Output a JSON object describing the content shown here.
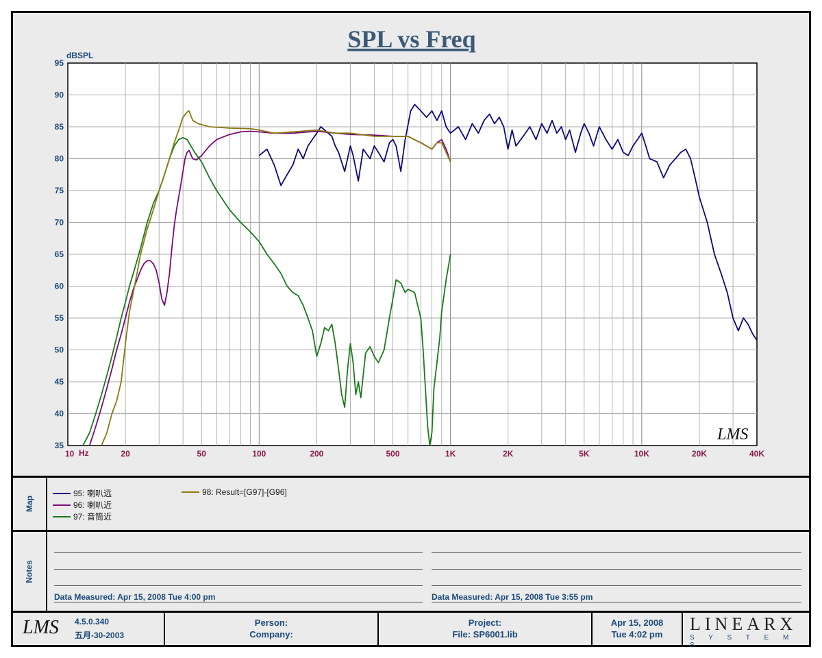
{
  "chart_data": {
    "type": "line",
    "title": "SPL vs Freq",
    "ylabel": "dBSPL",
    "xlabel_unit": "Hz",
    "x_scale": "log",
    "xlim": [
      10,
      40000
    ],
    "ylim": [
      35,
      95
    ],
    "grid": true,
    "y_ticks": [
      "95",
      "90",
      "85",
      "80",
      "75",
      "70",
      "65",
      "60",
      "55",
      "50",
      "45",
      "40",
      "35"
    ],
    "y_tick_values": [
      95,
      90,
      85,
      80,
      75,
      70,
      65,
      60,
      55,
      50,
      45,
      40,
      35
    ],
    "x_ticks": [
      "10",
      "20",
      "50",
      "100",
      "200",
      "500",
      "1K",
      "2K",
      "5K",
      "10K",
      "20K",
      "40K"
    ],
    "x_tick_values": [
      10,
      20,
      50,
      100,
      200,
      500,
      1000,
      2000,
      5000,
      10000,
      20000,
      40000
    ],
    "watermark": "LMS",
    "series": [
      {
        "name": "95: 喇叭远",
        "color": "#0a0a7a",
        "points": [
          [
            100,
            80.5
          ],
          [
            110,
            81.5
          ],
          [
            120,
            79
          ],
          [
            130,
            75.8
          ],
          [
            140,
            77.5
          ],
          [
            150,
            79
          ],
          [
            160,
            81.5
          ],
          [
            170,
            80
          ],
          [
            180,
            82
          ],
          [
            200,
            84
          ],
          [
            210,
            85
          ],
          [
            220,
            84.5
          ],
          [
            240,
            83.5
          ],
          [
            250,
            82
          ],
          [
            260,
            81
          ],
          [
            280,
            78
          ],
          [
            300,
            82
          ],
          [
            310,
            80.5
          ],
          [
            330,
            76.5
          ],
          [
            350,
            81.5
          ],
          [
            380,
            80
          ],
          [
            400,
            82
          ],
          [
            420,
            81
          ],
          [
            450,
            79.5
          ],
          [
            480,
            82.5
          ],
          [
            500,
            83
          ],
          [
            520,
            82
          ],
          [
            550,
            78
          ],
          [
            580,
            83
          ],
          [
            620,
            87.5
          ],
          [
            650,
            88.5
          ],
          [
            700,
            87.5
          ],
          [
            750,
            86.5
          ],
          [
            800,
            87.5
          ],
          [
            850,
            86
          ],
          [
            900,
            87.5
          ],
          [
            950,
            85
          ],
          [
            1000,
            84
          ],
          [
            1100,
            85
          ],
          [
            1200,
            83
          ],
          [
            1300,
            85.5
          ],
          [
            1400,
            84
          ],
          [
            1500,
            86
          ],
          [
            1600,
            87
          ],
          [
            1700,
            85.5
          ],
          [
            1800,
            86.5
          ],
          [
            1900,
            85
          ],
          [
            2000,
            81.5
          ],
          [
            2100,
            84.5
          ],
          [
            2200,
            82
          ],
          [
            2400,
            83.5
          ],
          [
            2600,
            85
          ],
          [
            2800,
            83
          ],
          [
            3000,
            85.5
          ],
          [
            3200,
            84
          ],
          [
            3400,
            86
          ],
          [
            3600,
            84
          ],
          [
            3800,
            85
          ],
          [
            4000,
            83
          ],
          [
            4200,
            84.5
          ],
          [
            4500,
            81
          ],
          [
            4800,
            84
          ],
          [
            5000,
            85.5
          ],
          [
            5300,
            84
          ],
          [
            5600,
            82
          ],
          [
            6000,
            85
          ],
          [
            6500,
            83
          ],
          [
            7000,
            81.5
          ],
          [
            7500,
            83
          ],
          [
            8000,
            81
          ],
          [
            8500,
            80.5
          ],
          [
            9000,
            82
          ],
          [
            9500,
            83
          ],
          [
            10000,
            84
          ],
          [
            10500,
            82
          ],
          [
            11000,
            80
          ],
          [
            12000,
            79.5
          ],
          [
            13000,
            77
          ],
          [
            14000,
            79
          ],
          [
            15000,
            80
          ],
          [
            16000,
            81
          ],
          [
            17000,
            81.5
          ],
          [
            18000,
            80
          ],
          [
            19000,
            77
          ],
          [
            20000,
            74
          ],
          [
            22000,
            70
          ],
          [
            24000,
            65
          ],
          [
            26000,
            62
          ],
          [
            28000,
            59
          ],
          [
            30000,
            55
          ],
          [
            32000,
            53
          ],
          [
            34000,
            55
          ],
          [
            36000,
            54
          ],
          [
            38000,
            52.5
          ],
          [
            40000,
            51.5
          ]
        ]
      },
      {
        "name": "96: 喇叭近",
        "color": "#7a0a7a",
        "points": [
          [
            13,
            35
          ],
          [
            14,
            38
          ],
          [
            15,
            41
          ],
          [
            16,
            44
          ],
          [
            17,
            47
          ],
          [
            18,
            50
          ],
          [
            19,
            52.5
          ],
          [
            20,
            55
          ],
          [
            21,
            57.5
          ],
          [
            22,
            59.5
          ],
          [
            23,
            61
          ],
          [
            24,
            62.5
          ],
          [
            25,
            63.5
          ],
          [
            26,
            64
          ],
          [
            27,
            64
          ],
          [
            28,
            63.5
          ],
          [
            29,
            62.5
          ],
          [
            30,
            60.5
          ],
          [
            31,
            58
          ],
          [
            32,
            57
          ],
          [
            33,
            59
          ],
          [
            34,
            62
          ],
          [
            35,
            66
          ],
          [
            36,
            69.5
          ],
          [
            37,
            72
          ],
          [
            38,
            74
          ],
          [
            39,
            76
          ],
          [
            40,
            78
          ],
          [
            41,
            80
          ],
          [
            42,
            81
          ],
          [
            43,
            81.3
          ],
          [
            45,
            80
          ],
          [
            47,
            79.8
          ],
          [
            50,
            80.5
          ],
          [
            55,
            82
          ],
          [
            60,
            83
          ],
          [
            70,
            83.8
          ],
          [
            80,
            84.2
          ],
          [
            90,
            84.3
          ],
          [
            100,
            84.2
          ],
          [
            120,
            84
          ],
          [
            150,
            84
          ],
          [
            200,
            84.3
          ],
          [
            250,
            84
          ],
          [
            300,
            83.8
          ],
          [
            400,
            83.7
          ],
          [
            500,
            83.5
          ],
          [
            600,
            83.5
          ],
          [
            700,
            82.5
          ],
          [
            750,
            82
          ],
          [
            800,
            81.5
          ],
          [
            850,
            82.5
          ],
          [
            900,
            83
          ],
          [
            950,
            81.5
          ],
          [
            1000,
            79.5
          ]
        ]
      },
      {
        "name": "97: 音筒近",
        "color": "#1a7a1a",
        "points": [
          [
            12,
            35
          ],
          [
            13,
            37
          ],
          [
            14,
            40
          ],
          [
            15,
            43
          ],
          [
            16,
            46
          ],
          [
            17,
            49
          ],
          [
            18,
            52
          ],
          [
            19,
            55
          ],
          [
            20,
            57.5
          ],
          [
            21,
            60
          ],
          [
            22,
            62
          ],
          [
            23,
            64
          ],
          [
            24,
            66
          ],
          [
            25,
            68
          ],
          [
            26,
            70
          ],
          [
            27,
            71.5
          ],
          [
            28,
            73
          ],
          [
            30,
            75
          ],
          [
            32,
            77.5
          ],
          [
            34,
            80
          ],
          [
            36,
            82
          ],
          [
            38,
            83
          ],
          [
            40,
            83.3
          ],
          [
            42,
            83
          ],
          [
            44,
            82
          ],
          [
            46,
            81
          ],
          [
            50,
            79.5
          ],
          [
            55,
            77
          ],
          [
            60,
            75
          ],
          [
            70,
            72
          ],
          [
            80,
            70
          ],
          [
            90,
            68.5
          ],
          [
            100,
            67
          ],
          [
            110,
            65
          ],
          [
            120,
            63.5
          ],
          [
            130,
            62
          ],
          [
            140,
            60
          ],
          [
            150,
            59
          ],
          [
            160,
            58.5
          ],
          [
            170,
            57
          ],
          [
            180,
            55
          ],
          [
            190,
            53
          ],
          [
            200,
            49
          ],
          [
            210,
            51
          ],
          [
            220,
            53.5
          ],
          [
            230,
            53
          ],
          [
            240,
            54
          ],
          [
            250,
            51
          ],
          [
            260,
            47
          ],
          [
            270,
            43
          ],
          [
            280,
            41
          ],
          [
            290,
            47
          ],
          [
            300,
            51
          ],
          [
            310,
            48
          ],
          [
            320,
            43
          ],
          [
            330,
            45
          ],
          [
            340,
            42.5
          ],
          [
            360,
            49.5
          ],
          [
            380,
            50.5
          ],
          [
            400,
            49
          ],
          [
            420,
            48
          ],
          [
            450,
            50
          ],
          [
            480,
            55
          ],
          [
            500,
            58
          ],
          [
            520,
            61
          ],
          [
            550,
            60.5
          ],
          [
            580,
            59
          ],
          [
            600,
            59.5
          ],
          [
            650,
            59
          ],
          [
            700,
            55
          ],
          [
            720,
            50
          ],
          [
            740,
            44
          ],
          [
            760,
            38
          ],
          [
            780,
            35
          ],
          [
            800,
            37
          ],
          [
            820,
            44
          ],
          [
            850,
            48
          ],
          [
            880,
            52
          ],
          [
            900,
            56
          ],
          [
            950,
            61
          ],
          [
            1000,
            65
          ]
        ]
      },
      {
        "name": "98: Result=[G97]-[G96]",
        "color": "#8a7a10",
        "points": [
          [
            15,
            35
          ],
          [
            16,
            37
          ],
          [
            17,
            40
          ],
          [
            18,
            42
          ],
          [
            19,
            45
          ],
          [
            20,
            51
          ],
          [
            21,
            56
          ],
          [
            22,
            59
          ],
          [
            23,
            62
          ],
          [
            24,
            65
          ],
          [
            25,
            67
          ],
          [
            26,
            69
          ],
          [
            27,
            70.5
          ],
          [
            28,
            72
          ],
          [
            29,
            73.5
          ],
          [
            30,
            75
          ],
          [
            32,
            77.5
          ],
          [
            34,
            80
          ],
          [
            36,
            82.5
          ],
          [
            38,
            84.5
          ],
          [
            40,
            86.5
          ],
          [
            42,
            87.3
          ],
          [
            43,
            87.5
          ],
          [
            45,
            86
          ],
          [
            48,
            85.5
          ],
          [
            55,
            85
          ],
          [
            70,
            84.8
          ],
          [
            90,
            84.7
          ],
          [
            100,
            84.5
          ],
          [
            120,
            84
          ],
          [
            150,
            84.2
          ],
          [
            200,
            84.5
          ],
          [
            250,
            84
          ],
          [
            300,
            84
          ],
          [
            400,
            83.5
          ],
          [
            500,
            83.5
          ],
          [
            600,
            83.5
          ],
          [
            700,
            82.5
          ],
          [
            750,
            82
          ],
          [
            800,
            81.5
          ],
          [
            850,
            82.5
          ],
          [
            900,
            82.5
          ],
          [
            950,
            81
          ],
          [
            1000,
            79.5
          ]
        ]
      }
    ]
  },
  "map": {
    "label": "Map",
    "entries": [
      {
        "text": "95: 喇叭远",
        "color": "#0a0a7a"
      },
      {
        "text": "96: 喇叭近",
        "color": "#7a0a7a"
      },
      {
        "text": "97: 音筒近",
        "color": "#1a7a1a"
      },
      {
        "text": "98: Result=[G97]-[G96]",
        "color": "#8a7a10"
      }
    ]
  },
  "notes": {
    "label": "Notes",
    "left_measured": "Data Measured: Apr 15, 2008  Tue  4:00 pm",
    "right_measured": "Data Measured: Apr 15, 2008  Tue  3:55 pm"
  },
  "footer": {
    "logo": "LMS",
    "version": "4.5.0.340",
    "version_date": "五月-30-2003",
    "person": "Person:",
    "company": "Company:",
    "project": "Project:",
    "file": "File: SP6001.lib",
    "date": "Apr 15, 2008",
    "time": "Tue  4:02 pm",
    "brand": "LINEARX",
    "brand_sub": "S Y S T E M S"
  }
}
